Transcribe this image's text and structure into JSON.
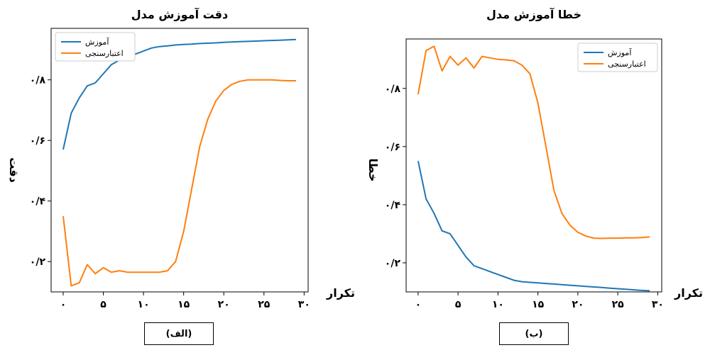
{
  "chart_data": [
    {
      "type": "line",
      "title": "دقت آموزش مدل",
      "xlabel": "تکرار",
      "ylabel": "دقت",
      "caption": "(الف)",
      "x_ticks": [
        0,
        5,
        10,
        15,
        20,
        25,
        30
      ],
      "x_tick_labels": [
        "۰",
        "۵",
        "۱۰",
        "۱۵",
        "۲۰",
        "۲۵",
        "۳۰"
      ],
      "y_ticks": [
        0.2,
        0.4,
        0.6,
        0.8
      ],
      "y_tick_labels": [
        "۰/۲",
        "۰/۴",
        "۰/۶",
        "۰/۸"
      ],
      "xlim": [
        -1.5,
        30.5
      ],
      "ylim": [
        0.1,
        0.97
      ],
      "legend_position": "top-left",
      "grid": false,
      "series": [
        {
          "name": "آموزش",
          "color": "#1f77b4",
          "x": [
            0,
            1,
            2,
            3,
            4,
            5,
            6,
            7,
            8,
            9,
            10,
            11,
            12,
            13,
            14,
            15,
            16,
            17,
            18,
            19,
            20,
            21,
            22,
            23,
            24,
            25,
            26,
            27,
            28,
            29
          ],
          "y": [
            0.57,
            0.69,
            0.74,
            0.78,
            0.79,
            0.82,
            0.85,
            0.865,
            0.875,
            0.885,
            0.895,
            0.905,
            0.91,
            0.912,
            0.915,
            0.917,
            0.918,
            0.92,
            0.921,
            0.922,
            0.924,
            0.925,
            0.926,
            0.927,
            0.928,
            0.929,
            0.93,
            0.931,
            0.932,
            0.933
          ]
        },
        {
          "name": "اعتبارسنجی",
          "color": "#ff7f0e",
          "x": [
            0,
            1,
            2,
            3,
            4,
            5,
            6,
            7,
            8,
            9,
            10,
            11,
            12,
            13,
            14,
            15,
            16,
            17,
            18,
            19,
            20,
            21,
            22,
            23,
            24,
            25,
            26,
            27,
            28,
            29
          ],
          "y": [
            0.35,
            0.12,
            0.13,
            0.19,
            0.16,
            0.18,
            0.165,
            0.17,
            0.165,
            0.165,
            0.165,
            0.165,
            0.165,
            0.17,
            0.2,
            0.3,
            0.44,
            0.58,
            0.67,
            0.73,
            0.765,
            0.785,
            0.795,
            0.8,
            0.8,
            0.8,
            0.8,
            0.798,
            0.797,
            0.797
          ]
        }
      ]
    },
    {
      "type": "line",
      "title": "خطا آموزش مدل",
      "xlabel": "تکرار",
      "ylabel": "خطا",
      "caption": "(ب)",
      "x_ticks": [
        0,
        5,
        10,
        15,
        20,
        25,
        30
      ],
      "x_tick_labels": [
        "۰",
        "۵",
        "۱۰",
        "۱۵",
        "۲۰",
        "۲۵",
        "۳۰"
      ],
      "y_ticks": [
        0.2,
        0.4,
        0.6,
        0.8
      ],
      "y_tick_labels": [
        "۰/۲",
        "۰/۴",
        "۰/۶",
        "۰/۸"
      ],
      "xlim": [
        -1.5,
        30.5
      ],
      "ylim": [
        0.1,
        0.97
      ],
      "legend_position": "top-right",
      "grid": false,
      "series": [
        {
          "name": "آموزش",
          "color": "#1f77b4",
          "x": [
            0,
            1,
            2,
            3,
            4,
            5,
            6,
            7,
            8,
            9,
            10,
            11,
            12,
            13,
            14,
            15,
            16,
            17,
            18,
            19,
            20,
            21,
            22,
            23,
            24,
            25,
            26,
            27,
            28,
            29
          ],
          "y": [
            0.55,
            0.42,
            0.37,
            0.31,
            0.3,
            0.26,
            0.22,
            0.19,
            0.18,
            0.17,
            0.16,
            0.15,
            0.14,
            0.135,
            0.133,
            0.131,
            0.129,
            0.127,
            0.125,
            0.123,
            0.121,
            0.119,
            0.117,
            0.115,
            0.113,
            0.111,
            0.109,
            0.107,
            0.105,
            0.104
          ]
        },
        {
          "name": "اعتبارسنجی",
          "color": "#ff7f0e",
          "x": [
            0,
            1,
            2,
            3,
            4,
            5,
            6,
            7,
            8,
            9,
            10,
            11,
            12,
            13,
            14,
            15,
            16,
            17,
            18,
            19,
            20,
            21,
            22,
            23,
            24,
            25,
            26,
            27,
            28,
            29
          ],
          "y": [
            0.78,
            0.93,
            0.945,
            0.86,
            0.91,
            0.88,
            0.905,
            0.87,
            0.91,
            0.905,
            0.9,
            0.898,
            0.895,
            0.88,
            0.85,
            0.75,
            0.6,
            0.45,
            0.37,
            0.33,
            0.305,
            0.292,
            0.285,
            0.284,
            0.285,
            0.285,
            0.286,
            0.286,
            0.287,
            0.289
          ]
        }
      ]
    }
  ]
}
